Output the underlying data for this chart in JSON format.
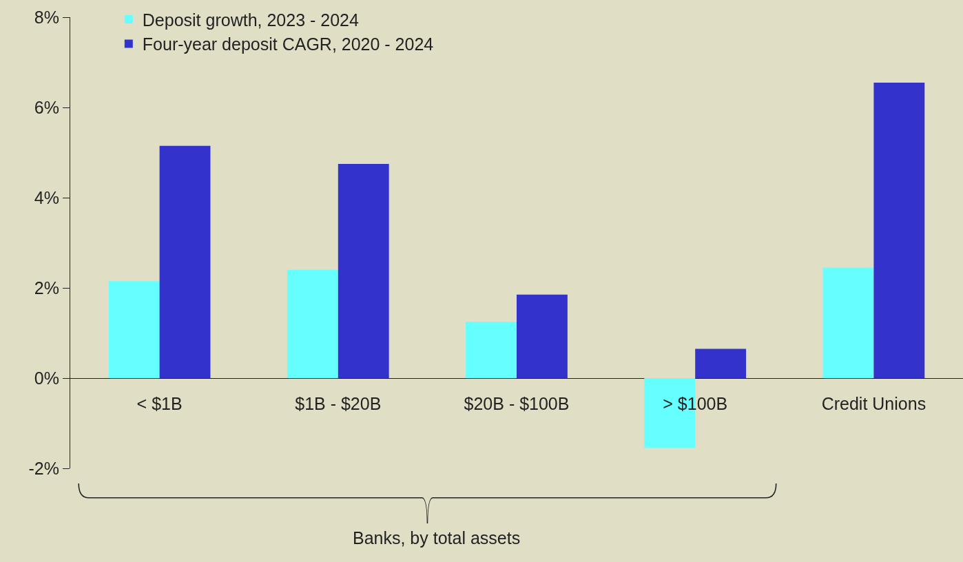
{
  "chart_data": {
    "type": "bar",
    "categories": [
      "< $1B",
      "$1B - $20B",
      "$20B - $100B",
      "> $100B",
      "Credit Unions"
    ],
    "series": [
      {
        "name": "Deposit growth, 2023 - 2024",
        "color": "#66ffff",
        "values": [
          2.15,
          2.4,
          1.25,
          -1.55,
          2.45
        ]
      },
      {
        "name": "Four-year deposit CAGR, 2020 - 2024",
        "color": "#3333cc",
        "values": [
          5.15,
          4.75,
          1.85,
          0.65,
          6.55
        ]
      }
    ],
    "ylim": [
      -2,
      8
    ],
    "yticks": [
      {
        "value": -2,
        "label": "-2%"
      },
      {
        "value": 0,
        "label": "0%"
      },
      {
        "value": 2,
        "label": "2%"
      },
      {
        "value": 4,
        "label": "4%"
      },
      {
        "value": 6,
        "label": "6%"
      },
      {
        "value": 8,
        "label": "8%"
      }
    ],
    "annotations": [
      "Banks, by total assets"
    ],
    "legend": "top left",
    "grid": false
  }
}
